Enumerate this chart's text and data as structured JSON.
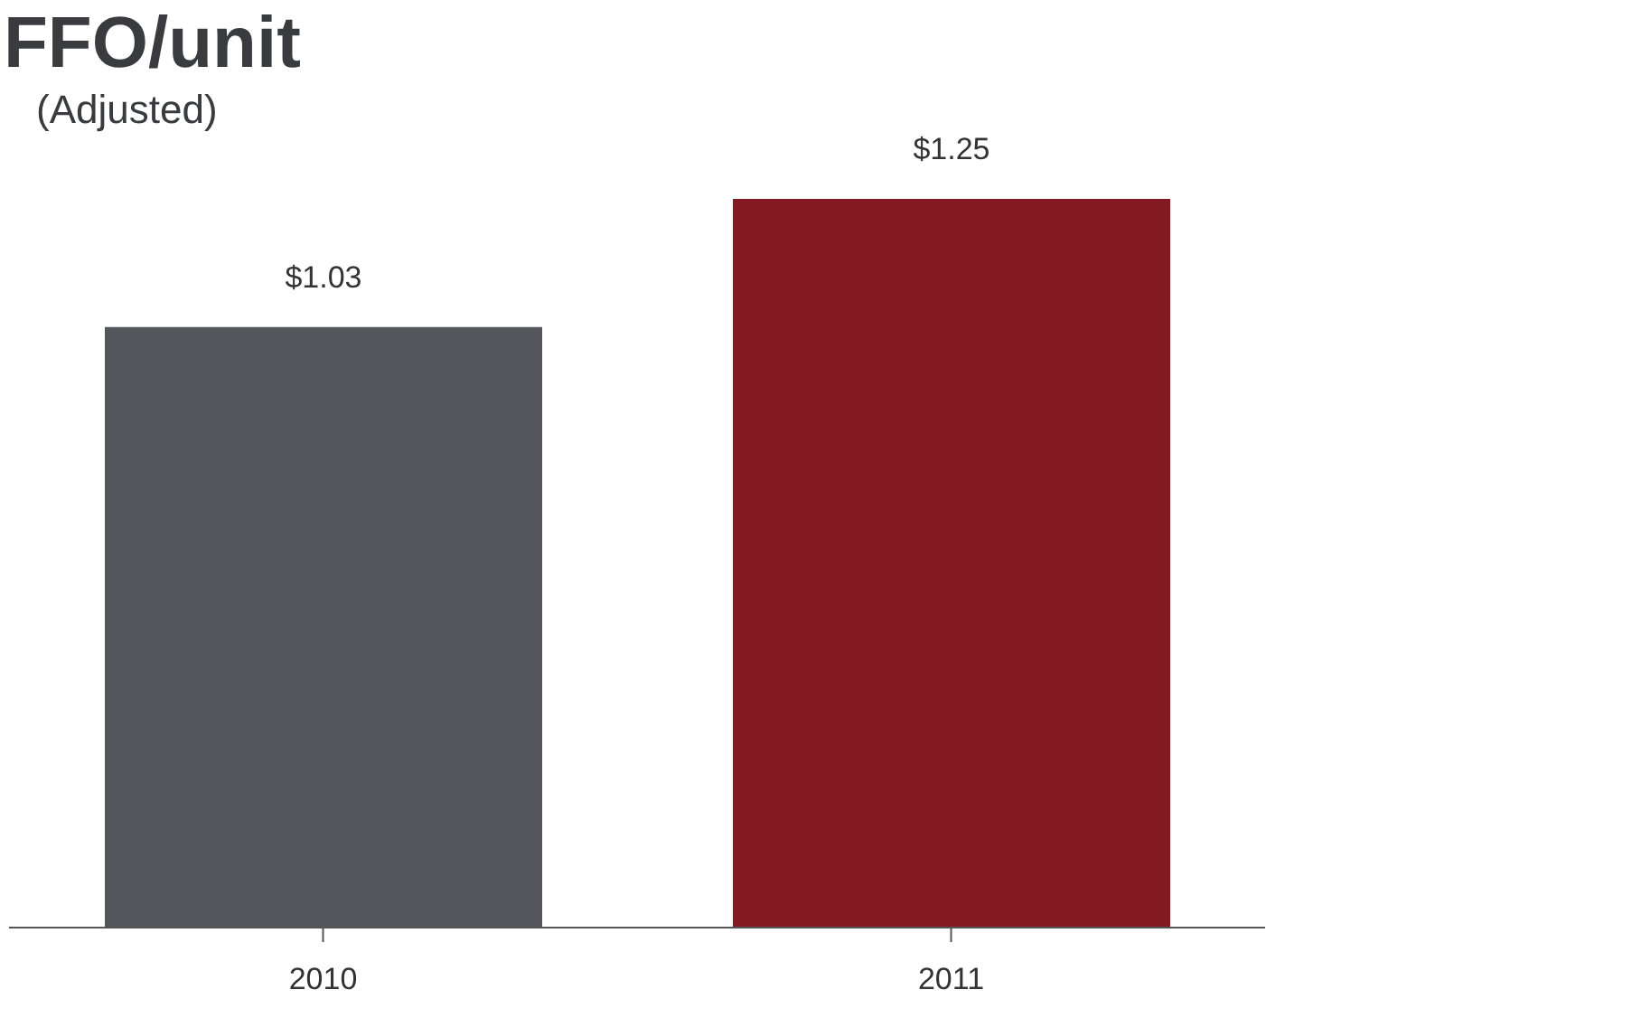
{
  "chart_data": {
    "type": "bar",
    "title": "FFO/unit",
    "subtitle": "(Adjusted)",
    "categories": [
      "2010",
      "2011"
    ],
    "values": [
      1.03,
      1.25
    ],
    "colors": [
      "#55565b",
      "#841a21"
    ],
    "value_labels": [
      "$1.03",
      "$1.25"
    ]
  }
}
